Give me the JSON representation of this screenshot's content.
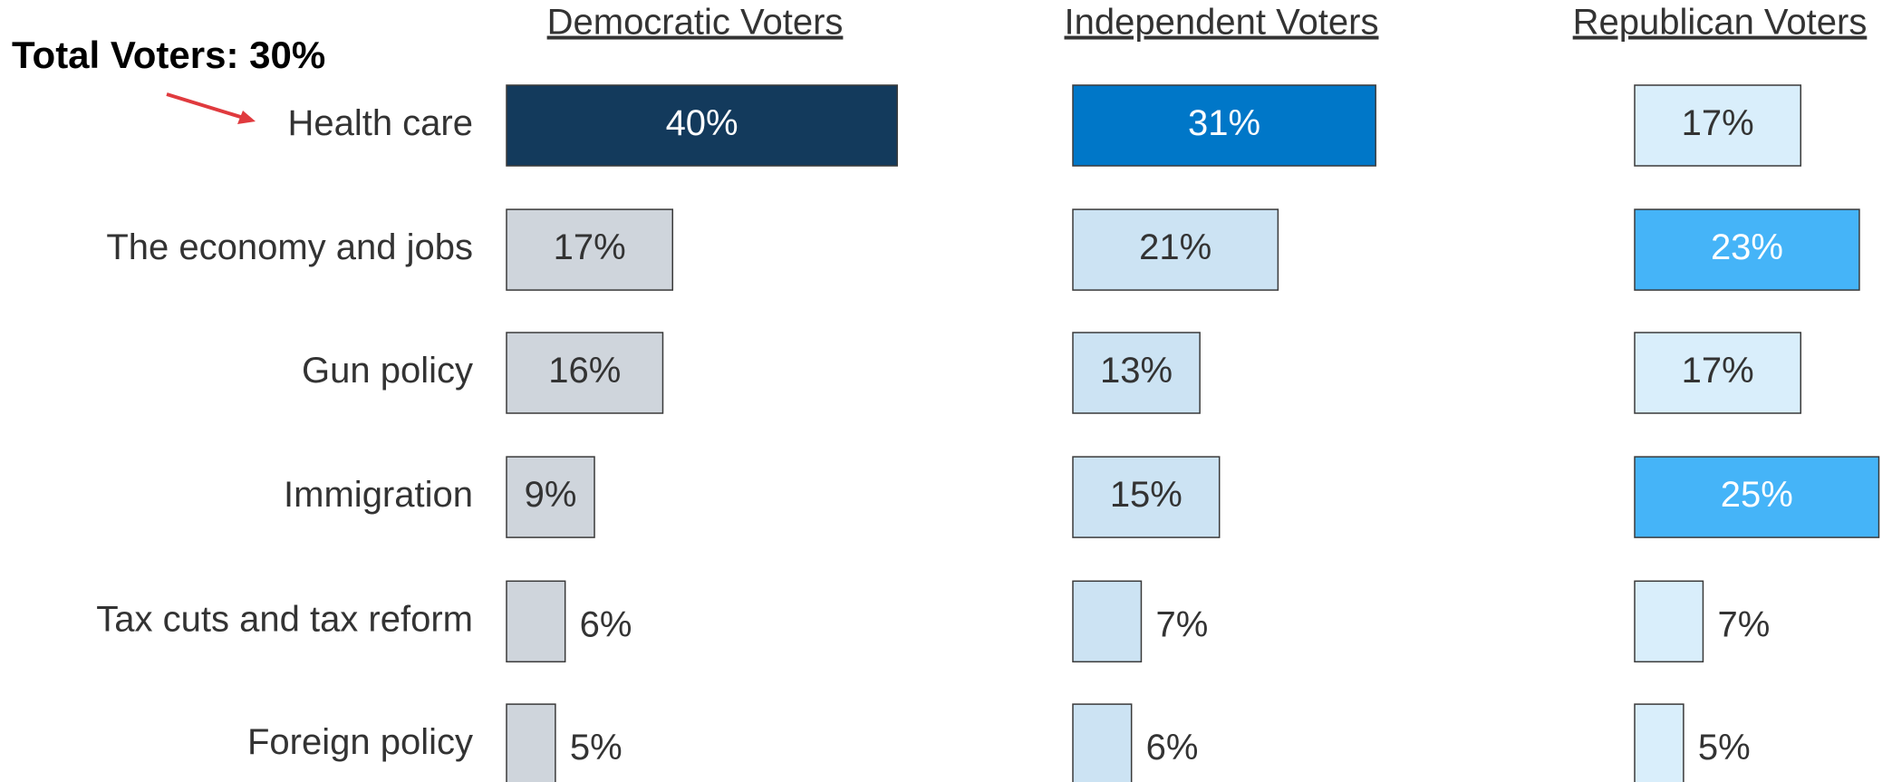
{
  "annotation": "Total Voters: 30%",
  "categories": [
    "Health care",
    "The economy and jobs",
    "Gun policy",
    "Immigration",
    "Tax cuts and tax reform",
    "Foreign policy"
  ],
  "chart_data": [
    {
      "type": "bar",
      "title": "Democratic Voters",
      "values": [
        40,
        17,
        16,
        9,
        6,
        5
      ],
      "value_labels": [
        "40%",
        "17%",
        "16%",
        "9%",
        "6%",
        "5%"
      ],
      "colors": [
        "#133a5c",
        "#cfd5dc",
        "#cfd5dc",
        "#cfd5dc",
        "#cfd5dc",
        "#cfd5dc"
      ]
    },
    {
      "type": "bar",
      "title": "Independent Voters",
      "values": [
        31,
        21,
        13,
        15,
        7,
        6
      ],
      "value_labels": [
        "31%",
        "21%",
        "13%",
        "15%",
        "7%",
        "6%"
      ],
      "colors": [
        "#0077c8",
        "#cce3f3",
        "#cce3f3",
        "#cce3f3",
        "#cce3f3",
        "#cce3f3"
      ]
    },
    {
      "type": "bar",
      "title": "Republican Voters",
      "values": [
        17,
        23,
        17,
        25,
        7,
        5
      ],
      "value_labels": [
        "17%",
        "23%",
        "17%",
        "25%",
        "7%",
        "5%"
      ],
      "colors": [
        "#d9eefb",
        "#45b4f8",
        "#d9eefb",
        "#45b4f8",
        "#d9eefb",
        "#d9eefb"
      ]
    }
  ]
}
